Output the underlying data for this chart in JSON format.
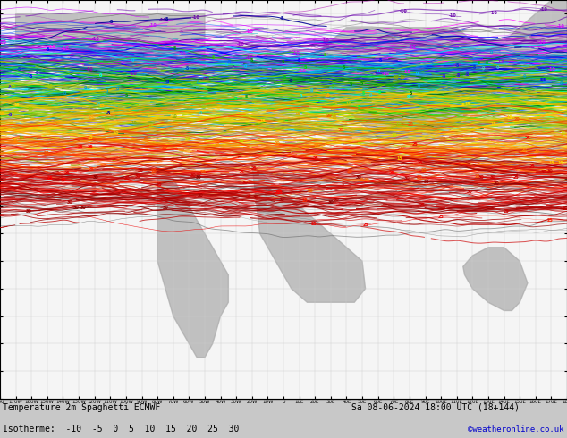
{
  "title_line1": "Temperature 2m Spaghetti ECMWF",
  "title_line2": "Sa 08-06-2024 18:00 UTC (18+144)",
  "legend_label": "Isotherme:  -10  -5  0  5  10  15  20  25  30",
  "credit": "©weatheronline.co.uk",
  "bg_color": "#c8c8c8",
  "map_bg": "#f5f5f5",
  "land_color": "#aaaaaa",
  "grid_color": "#cccccc",
  "label_color": "#000000",
  "credit_color": "#0000cc",
  "isotherm_colors_named": {
    "-10": [
      "#9900cc",
      "#cc00ff",
      "#6600aa",
      "#ff00ff",
      "#aa00aa"
    ],
    "-5": [
      "#0000ff",
      "#0033cc",
      "#3300ff",
      "#000099",
      "#0066ff"
    ],
    "0": [
      "#00ccff",
      "#00aacc",
      "#0099cc",
      "#33cccc",
      "#00ffff"
    ],
    "5": [
      "#00cc00",
      "#009900",
      "#33cc00",
      "#00ff33",
      "#006600"
    ],
    "10": [
      "#99cc00",
      "#aacc00",
      "#cccc00",
      "#88aa00",
      "#bbdd00"
    ],
    "15": [
      "#ffcc00",
      "#ffaa00",
      "#ffdd00",
      "#ffbb00",
      "#ddaa00"
    ],
    "20": [
      "#ff6600",
      "#ff4400",
      "#ff8800",
      "#ee5500",
      "#ff7700"
    ],
    "25": [
      "#ff0000",
      "#ee0000",
      "#cc0000",
      "#ff2200",
      "#dd0000"
    ],
    "30": [
      "#aa0000",
      "#880000",
      "#cc0000",
      "#990000",
      "#bb0000"
    ]
  },
  "gray_colors": [
    "#555555",
    "#666666",
    "#777777",
    "#888888",
    "#999999",
    "#444444"
  ],
  "figsize": [
    6.34,
    4.9
  ],
  "dpi": 100,
  "num_members": 51,
  "num_gray_members": 15,
  "seed": 7777,
  "isotherm_base_lats": {
    "-10": 55,
    "-5": 50,
    "0": 45,
    "5": 40,
    "10": 35,
    "15": 28,
    "20": 20,
    "25": 12,
    "30": 5
  }
}
